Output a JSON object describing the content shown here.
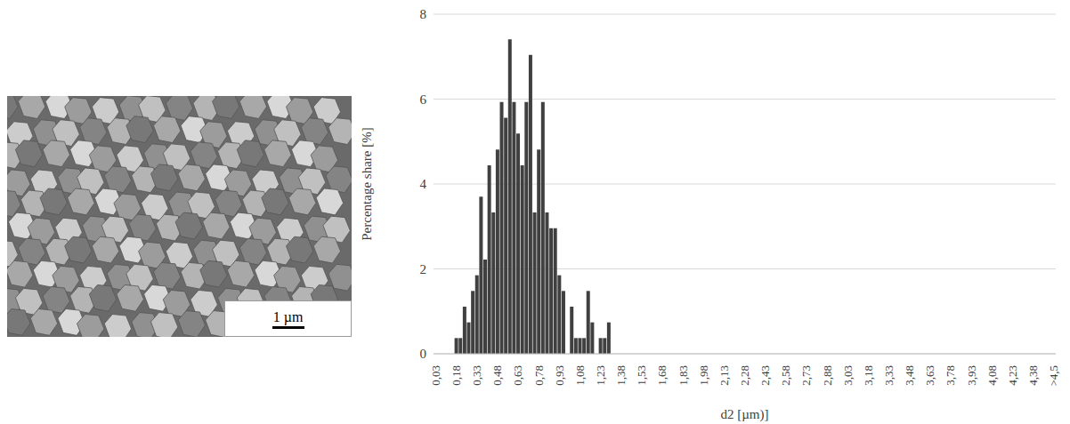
{
  "chart_data": {
    "type": "bar",
    "xlabel": "d2 [µm)]",
    "ylabel": "Percentage share [%]",
    "color": "#404040",
    "ylim": [
      0,
      8
    ],
    "yticks": [
      0,
      2,
      4,
      6,
      8
    ],
    "grid": true,
    "categories": [
      "0,03",
      null,
      null,
      null,
      null,
      "0,18",
      null,
      null,
      null,
      null,
      "0,33",
      null,
      null,
      null,
      null,
      "0,48",
      null,
      null,
      null,
      null,
      "0,63",
      null,
      null,
      null,
      null,
      "0,78",
      null,
      null,
      null,
      null,
      "0,93",
      null,
      null,
      null,
      null,
      "1,08",
      null,
      null,
      null,
      null,
      "1,23",
      null,
      null,
      null,
      null,
      "1,38",
      null,
      null,
      null,
      null,
      "1,53",
      null,
      null,
      null,
      null,
      "1,68",
      null,
      null,
      null,
      null,
      "1,83",
      null,
      null,
      null,
      null,
      "1,98",
      null,
      null,
      null,
      null,
      "2,13",
      null,
      null,
      null,
      null,
      "2,28",
      null,
      null,
      null,
      null,
      "2,43",
      null,
      null,
      null,
      null,
      "2,58",
      null,
      null,
      null,
      null,
      "2,73",
      null,
      null,
      null,
      null,
      "2,88",
      null,
      null,
      null,
      null,
      "3,03",
      null,
      null,
      null,
      null,
      "3,18",
      null,
      null,
      null,
      null,
      "3,33",
      null,
      null,
      null,
      null,
      "3,48",
      null,
      null,
      null,
      null,
      "3,63",
      null,
      null,
      null,
      null,
      "3,78",
      null,
      null,
      null,
      null,
      "3,93",
      null,
      null,
      null,
      null,
      "4,08",
      null,
      null,
      null,
      null,
      "4,23",
      null,
      null,
      null,
      null,
      "4,38",
      null,
      null,
      null,
      null,
      ">4,5"
    ],
    "values": [
      0,
      0,
      0,
      0,
      0,
      0.37,
      0.37,
      1.11,
      0.74,
      1.48,
      1.85,
      3.7,
      2.22,
      4.44,
      3.33,
      4.81,
      5.93,
      5.56,
      7.41,
      5.93,
      5.19,
      4.44,
      5.93,
      7.04,
      3.33,
      4.81,
      5.93,
      3.33,
      2.96,
      2.96,
      1.85,
      1.48,
      0,
      1.11,
      0.37,
      0.37,
      0.37,
      1.48,
      0.74,
      0,
      0.37,
      0.37,
      0.74,
      0,
      0,
      0,
      0,
      0,
      0,
      0,
      0,
      0,
      0,
      0,
      0,
      0,
      0,
      0,
      0,
      0,
      0,
      0,
      0,
      0,
      0,
      0,
      0,
      0,
      0,
      0,
      0,
      0,
      0,
      0,
      0,
      0,
      0,
      0,
      0,
      0,
      0,
      0,
      0,
      0,
      0,
      0,
      0,
      0,
      0,
      0,
      0,
      0,
      0,
      0,
      0,
      0,
      0,
      0,
      0,
      0,
      0,
      0,
      0,
      0,
      0,
      0,
      0,
      0,
      0,
      0,
      0,
      0,
      0,
      0,
      0,
      0,
      0,
      0,
      0,
      0,
      0,
      0,
      0,
      0,
      0,
      0,
      0,
      0,
      0,
      0,
      0,
      0,
      0,
      0,
      0,
      0,
      0,
      0,
      0,
      0,
      0,
      0,
      0,
      0,
      0,
      0,
      0,
      0,
      0,
      0,
      0
    ]
  },
  "micrograph": {
    "scale_bar": "1 µm"
  }
}
